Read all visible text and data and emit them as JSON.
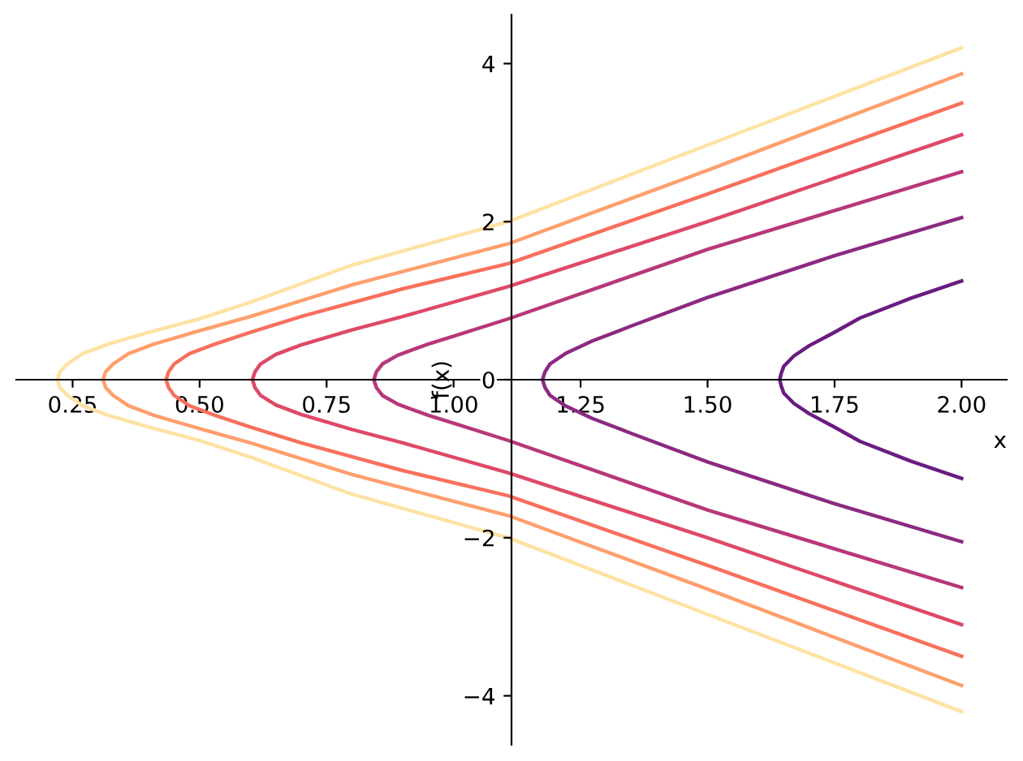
{
  "chart_data": {
    "type": "line",
    "xlabel": "x",
    "ylabel": "f(x)",
    "xlim": [
      0.139,
      2.089
    ],
    "ylim": [
      -4.62,
      4.62
    ],
    "xticks": [
      {
        "value": 0.25,
        "label": "0.25"
      },
      {
        "value": 0.5,
        "label": "0.50"
      },
      {
        "value": 0.75,
        "label": "0.75"
      },
      {
        "value": 1.0,
        "label": "1.00"
      },
      {
        "value": 1.25,
        "label": "1.25"
      },
      {
        "value": 1.5,
        "label": "1.50"
      },
      {
        "value": 1.75,
        "label": "1.75"
      },
      {
        "value": 2.0,
        "label": "2.00"
      }
    ],
    "yticks": [
      {
        "value": -4,
        "label": "−4"
      },
      {
        "value": -2,
        "label": "−2"
      },
      0,
      2,
      4
    ],
    "grid": false,
    "marker": "none",
    "line_style": "solid",
    "series": [
      {
        "color": "#6a1c81",
        "x": [
          2.0,
          1.9,
          1.8,
          1.75,
          1.7,
          1.67,
          1.65,
          1.645,
          1.642,
          1.645,
          1.65,
          1.67,
          1.7,
          1.75,
          1.8,
          1.9,
          2.0
        ],
        "values": [
          -1.25,
          -1.03,
          -0.78,
          -0.6,
          -0.43,
          -0.3,
          -0.17,
          -0.08,
          0,
          0.08,
          0.17,
          0.3,
          0.43,
          0.6,
          0.78,
          1.03,
          1.25
        ]
      },
      {
        "color": "#8c2981",
        "x": [
          2.0,
          1.75,
          1.5,
          1.35,
          1.273,
          1.22,
          1.19,
          1.18,
          1.175,
          1.18,
          1.19,
          1.22,
          1.273,
          1.35,
          1.5,
          1.75,
          2.0
        ],
        "values": [
          -2.05,
          -1.57,
          -1.04,
          -0.68,
          -0.49,
          -0.33,
          -0.2,
          -0.1,
          0,
          0.1,
          0.2,
          0.33,
          0.49,
          0.68,
          1.04,
          1.57,
          2.05
        ]
      },
      {
        "color": "#b73779",
        "x": [
          2.0,
          1.5,
          1.3,
          1.108,
          1.0,
          0.95,
          0.89,
          0.86,
          0.848,
          0.843,
          0.848,
          0.86,
          0.89,
          0.95,
          1.0,
          1.108,
          1.3,
          1.5,
          2.0
        ],
        "values": [
          -2.63,
          -1.65,
          -1.2,
          -0.77,
          -0.55,
          -0.45,
          -0.31,
          -0.2,
          -0.1,
          0,
          0.1,
          0.2,
          0.31,
          0.45,
          0.55,
          0.77,
          1.2,
          1.65,
          2.63
        ]
      },
      {
        "color": "#de4968",
        "x": [
          2.0,
          1.5,
          1.108,
          0.9,
          0.8,
          0.7,
          0.65,
          0.62,
          0.609,
          0.604,
          0.609,
          0.62,
          0.65,
          0.7,
          0.8,
          0.9,
          1.108,
          1.5,
          2.0
        ],
        "values": [
          -3.1,
          -2.0,
          -1.18,
          -0.8,
          -0.63,
          -0.44,
          -0.32,
          -0.2,
          -0.1,
          0,
          0.1,
          0.2,
          0.32,
          0.44,
          0.63,
          0.8,
          1.18,
          2.0,
          3.1
        ]
      },
      {
        "color": "#f7705c",
        "x": [
          2.0,
          1.5,
          1.108,
          0.9,
          0.7,
          0.6,
          0.53,
          0.48,
          0.45,
          0.439,
          0.434,
          0.439,
          0.45,
          0.48,
          0.53,
          0.6,
          0.7,
          0.9,
          1.108,
          1.5,
          2.0
        ],
        "values": [
          -3.5,
          -2.35,
          -1.47,
          -1.15,
          -0.8,
          -0.6,
          -0.45,
          -0.33,
          -0.2,
          -0.1,
          0,
          0.1,
          0.2,
          0.33,
          0.45,
          0.6,
          0.8,
          1.15,
          1.47,
          2.35,
          3.5
        ]
      },
      {
        "color": "#fe9f6d",
        "x": [
          2.0,
          1.5,
          1.108,
          0.8,
          0.6,
          0.5,
          0.41,
          0.36,
          0.33,
          0.315,
          0.31,
          0.315,
          0.33,
          0.36,
          0.41,
          0.5,
          0.6,
          0.8,
          1.108,
          1.5,
          2.0
        ],
        "values": [
          -3.87,
          -2.65,
          -1.72,
          -1.2,
          -0.8,
          -0.62,
          -0.45,
          -0.33,
          -0.2,
          -0.1,
          0,
          0.1,
          0.2,
          0.33,
          0.45,
          0.62,
          0.8,
          1.2,
          1.72,
          2.65,
          3.87
        ]
      },
      {
        "color": "#fde2a3",
        "x": [
          2.0,
          1.5,
          1.108,
          0.8,
          0.6,
          0.5,
          0.4,
          0.32,
          0.27,
          0.24,
          0.225,
          0.22,
          0.225,
          0.24,
          0.27,
          0.32,
          0.4,
          0.5,
          0.6,
          0.8,
          1.108,
          1.5,
          2.0
        ],
        "values": [
          -4.2,
          -2.97,
          -2.0,
          -1.45,
          -0.98,
          -0.77,
          -0.6,
          -0.45,
          -0.33,
          -0.2,
          -0.1,
          0,
          0.1,
          0.2,
          0.33,
          0.45,
          0.6,
          0.77,
          0.98,
          1.45,
          2.0,
          2.97,
          4.2
        ]
      }
    ]
  }
}
